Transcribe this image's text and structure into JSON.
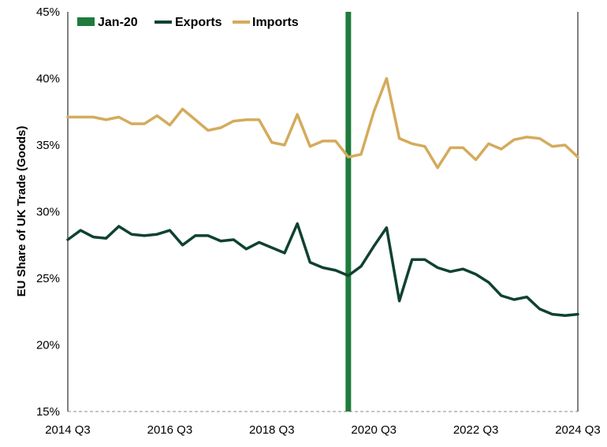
{
  "chart_data": {
    "type": "line",
    "ylabel": "EU Share of UK Trade (Goods)",
    "xlabel": "",
    "ylim": [
      15,
      45
    ],
    "y_ticks": [
      "15%",
      "20%",
      "25%",
      "30%",
      "35%",
      "40%",
      "45%"
    ],
    "x_ticks": [
      {
        "label": "2014 Q3",
        "index": 0
      },
      {
        "label": "2016 Q3",
        "index": 8
      },
      {
        "label": "2018 Q3",
        "index": 16
      },
      {
        "label": "2020 Q3",
        "index": 24
      },
      {
        "label": "2022 Q3",
        "index": 32
      },
      {
        "label": "2024 Q3",
        "index": 40
      }
    ],
    "marker": {
      "label": "Jan-20",
      "index": 22,
      "color": "#1e7b3c"
    },
    "legend_position": "top-left",
    "grid": false,
    "series": [
      {
        "name": "Exports",
        "color": "#0f4230",
        "values": [
          27.9,
          28.6,
          28.1,
          28.0,
          28.9,
          28.3,
          28.2,
          28.3,
          28.6,
          27.5,
          28.2,
          28.2,
          27.8,
          27.9,
          27.2,
          27.7,
          27.3,
          26.9,
          29.1,
          26.2,
          25.8,
          25.6,
          25.2,
          25.9,
          27.4,
          28.8,
          23.3,
          26.4,
          26.4,
          25.8,
          25.5,
          25.7,
          25.3,
          24.7,
          23.7,
          23.4,
          23.6,
          22.7,
          22.3,
          22.2,
          22.3
        ]
      },
      {
        "name": "Imports",
        "color": "#d4ab5c",
        "values": [
          37.1,
          37.1,
          37.1,
          36.9,
          37.1,
          36.6,
          36.6,
          37.2,
          36.5,
          37.7,
          36.9,
          36.1,
          36.3,
          36.8,
          36.9,
          36.9,
          35.2,
          35.0,
          37.3,
          34.9,
          35.3,
          35.3,
          34.1,
          34.3,
          37.5,
          40.0,
          35.5,
          35.1,
          34.9,
          33.3,
          34.8,
          34.8,
          33.9,
          35.1,
          34.7,
          35.4,
          35.6,
          35.5,
          34.9,
          35.0,
          34.1
        ]
      }
    ]
  }
}
